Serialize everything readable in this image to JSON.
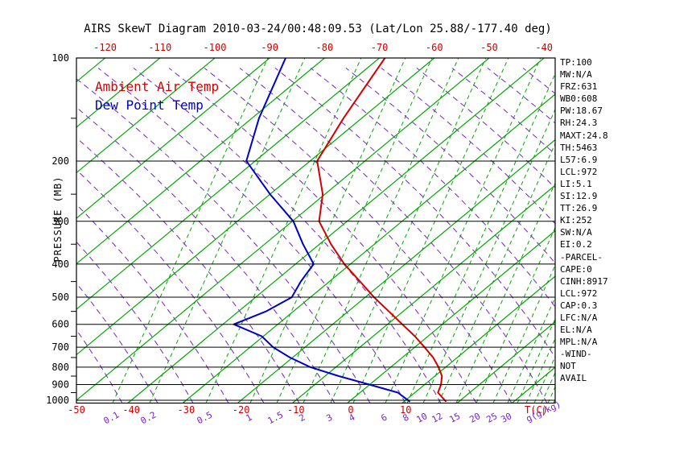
{
  "title": "AIRS SkewT Diagram 2010-03-24/00:48:09.53 (Lat/Lon 25.88/-177.40 deg)",
  "legend": {
    "ambient": "Ambient Air Temp",
    "dewpoint": "Dew Point Temp"
  },
  "axes": {
    "pressure_label": "PRESSURE (MB)",
    "temp_unit_label": "T(C)",
    "mixing_unit_label": "g(g/kg)",
    "pressure_ticks": [
      100,
      200,
      300,
      400,
      500,
      600,
      700,
      800,
      900,
      1000
    ],
    "pressure_minor_ticks": [
      150,
      250,
      350,
      450,
      550,
      650,
      750,
      850,
      950
    ],
    "top_temp_ticks": [
      -120,
      -110,
      -100,
      -90,
      -80,
      -70,
      -60,
      -50,
      -40
    ],
    "bottom_temp_ticks": [
      -50,
      -40,
      -30,
      -20,
      -10,
      0,
      10
    ]
  },
  "stats": [
    "TP:100",
    "MW:N/A",
    "FRZ:631",
    "WB0:608",
    "PW:18.67",
    "RH:24.3",
    "MAXT:24.8",
    "TH:5463",
    "L57:6.9",
    "LCL:972",
    "LI:5.1",
    "SI:12.9",
    "TT:26.9",
    "KI:252",
    "SW:N/A",
    "EI:0.2",
    "-PARCEL-",
    "CAPE:0",
    "CINH:8917",
    "LCL:972",
    "CAP:0.3",
    "LFC:N/A",
    "EL:N/A",
    "MPL:N/A",
    "-WIND-",
    "NOT",
    "AVAIL"
  ],
  "colors": {
    "isotherm_green": "#00a800",
    "mixing_green": "#00a800",
    "adiabat_purple": "#7722cc",
    "label_purple": "#7722cc",
    "label_red": "#cc0000",
    "temp_red": "#d40000",
    "dew_blue": "#0000cc",
    "axis_black": "#000000"
  },
  "chart_data": {
    "type": "line",
    "title": "AIRS SkewT Diagram 2010-03-24/00:48:09.53 (Lat/Lon 25.88/-177.40 deg)",
    "x_axis_label": "T(C)",
    "y_axis_label": "PRESSURE (MB)",
    "y_scale": "log",
    "pressure_range_mb": [
      100,
      1000
    ],
    "grid": "skew-t (isotherms, dry adiabats, mixing-ratio lines, isobars)",
    "isotherms_c": {
      "min": -130,
      "max": 40,
      "step": 10
    },
    "mixing_ratio_values_g_per_kg": [
      0.1,
      0.2,
      0.5,
      1,
      1.5,
      2,
      3,
      4,
      6,
      8,
      10,
      12,
      15,
      20,
      25,
      30
    ],
    "mixing_ratio_labels": [
      [
        "0.1",
        140
      ],
      [
        "0.2",
        186
      ],
      [
        "0.5",
        256
      ],
      [
        "1",
        311
      ],
      [
        "1.5",
        344
      ],
      [
        "2",
        377
      ],
      [
        "3",
        411
      ],
      [
        "4",
        439
      ],
      [
        "6",
        479
      ],
      [
        "8",
        506
      ],
      [
        "10",
        526
      ],
      [
        "12",
        545
      ],
      [
        "15",
        567
      ],
      [
        "20",
        592
      ],
      [
        "25",
        613
      ],
      [
        "30",
        631
      ]
    ],
    "series": [
      {
        "name": "Ambient Air Temp",
        "color": "#d40000",
        "points_p_t": [
          [
            100,
            -69.0
          ],
          [
            150,
            -63.3
          ],
          [
            200,
            -58.7
          ],
          [
            250,
            -50.4
          ],
          [
            300,
            -45.1
          ],
          [
            350,
            -37.9
          ],
          [
            400,
            -31.1
          ],
          [
            450,
            -24.4
          ],
          [
            500,
            -18.4
          ],
          [
            550,
            -12.6
          ],
          [
            600,
            -7.3
          ],
          [
            650,
            -2.4
          ],
          [
            700,
            1.8
          ],
          [
            750,
            5.6
          ],
          [
            800,
            8.7
          ],
          [
            850,
            11.3
          ],
          [
            900,
            13.0
          ],
          [
            950,
            14.2
          ],
          [
            1010,
            17.7
          ]
        ]
      },
      {
        "name": "Dew Point Temp",
        "color": "#0000cc",
        "points_p_t": [
          [
            100,
            -87.1
          ],
          [
            150,
            -78.7
          ],
          [
            200,
            -71.6
          ],
          [
            250,
            -60.0
          ],
          [
            300,
            -49.8
          ],
          [
            350,
            -43.0
          ],
          [
            400,
            -36.7
          ],
          [
            450,
            -35.2
          ],
          [
            500,
            -33.4
          ],
          [
            550,
            -35.0
          ],
          [
            600,
            -38.0
          ],
          [
            650,
            -30.3
          ],
          [
            700,
            -25.8
          ],
          [
            750,
            -20.5
          ],
          [
            800,
            -14.7
          ],
          [
            850,
            -7.5
          ],
          [
            900,
            0.0
          ],
          [
            950,
            6.9
          ],
          [
            1010,
            11.1
          ]
        ]
      }
    ]
  }
}
